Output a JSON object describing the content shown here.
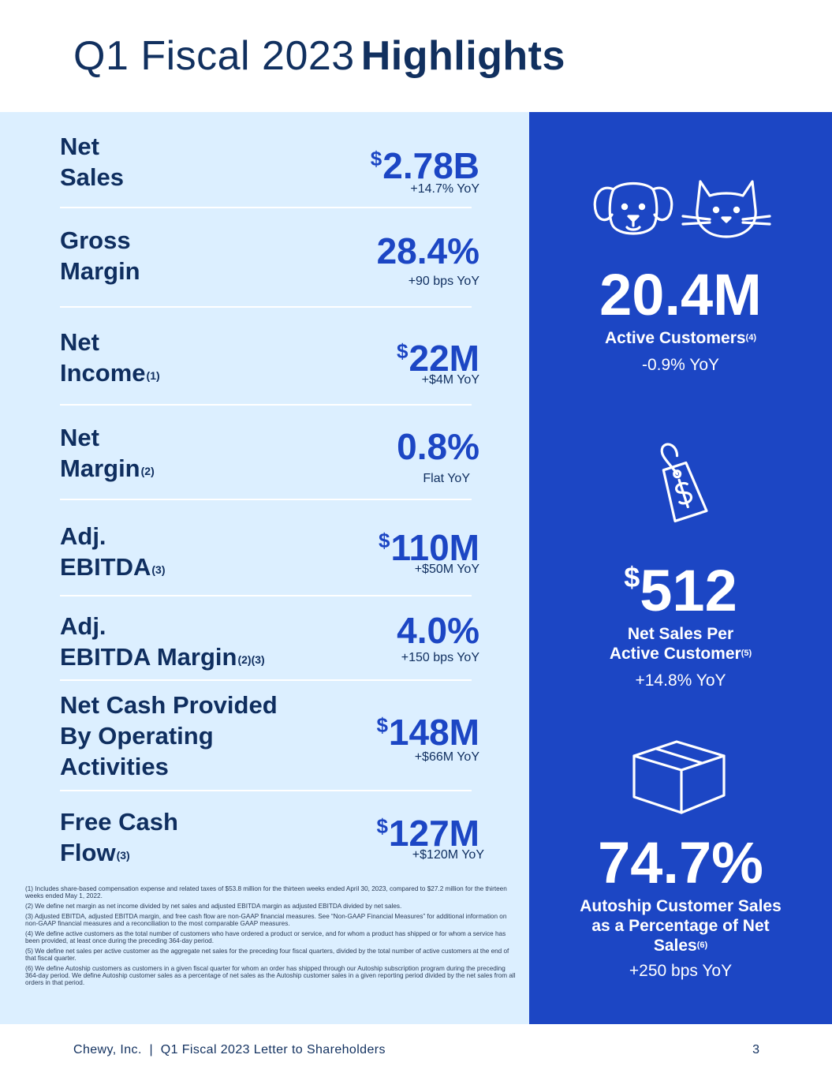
{
  "header": {
    "title_light": "Q1 Fiscal 2023",
    "title_bold": "Highlights"
  },
  "metrics": [
    {
      "label_lines": [
        "Net",
        "Sales"
      ],
      "sup": "",
      "currency": "$",
      "value": "2.78B",
      "change": "+14.7% YoY"
    },
    {
      "label_lines": [
        "Gross",
        "Margin"
      ],
      "sup": "",
      "currency": "",
      "value": "28.4%",
      "change": "+90 bps YoY"
    },
    {
      "label_lines": [
        "Net",
        "Income"
      ],
      "sup": "(1)",
      "currency": "$",
      "value": "22M",
      "change": "+$4M YoY"
    },
    {
      "label_lines": [
        "Net",
        "Margin"
      ],
      "sup": "(2)",
      "currency": "",
      "value": "0.8%",
      "change": "Flat YoY"
    },
    {
      "label_lines": [
        "Adj.",
        "EBITDA"
      ],
      "sup": "(3)",
      "currency": "$",
      "value": "110M",
      "change": "+$50M YoY"
    },
    {
      "label_lines": [
        "Adj.",
        "EBITDA Margin"
      ],
      "sup": "(2)(3)",
      "currency": "",
      "value": "4.0%",
      "change": "+150 bps YoY"
    },
    {
      "label_lines": [
        "Net Cash Provided",
        "By Operating",
        "Activities"
      ],
      "sup": "",
      "currency": "$",
      "value": "148M",
      "change": "+$66M YoY"
    },
    {
      "label_lines": [
        "Free Cash",
        "Flow"
      ],
      "sup": "(3)",
      "currency": "$",
      "value": "127M",
      "change": "+$120M YoY"
    }
  ],
  "footnotes": [
    "(1) Includes share-based compensation expense and related taxes of $53.8 million for the thirteen weeks ended April 30, 2023, compared to $27.2 million for the thirteen weeks ended May 1, 2022.",
    "(2) We define net margin as net income divided by net sales and adjusted EBITDA margin as adjusted EBITDA divided by net sales.",
    "(3) Adjusted EBITDA, adjusted EBITDA margin, and free cash flow are non-GAAP financial measures. See “Non-GAAP Financial Measures” for additional information on non-GAAP financial measures and a reconciliation to the most comparable GAAP measures.",
    "(4) We define active customers as the total number of customers who have ordered a product or service, and for whom a product has shipped or for whom a service has been provided, at least once during the preceding 364-day period.",
    "(5) We define net sales per active customer as the aggregate net sales for the preceding four fiscal quarters, divided by the total number of active customers at the end of that fiscal quarter.",
    "(6) We define Autoship customers as customers in a given fiscal quarter for whom an order has shipped through our Autoship subscription program during the preceding 364-day period. We define Autoship customer sales as a percentage of net sales as the Autoship customer sales in a given reporting period divided by the net sales from all orders in that period."
  ],
  "highlights": {
    "active_customers": {
      "icon": "dog-and-cat-icon",
      "value": "20.4M",
      "label": "Active Customers",
      "sup": "(4)",
      "change": "-0.9% YoY"
    },
    "net_sales_per_customer": {
      "icon": "price-tag-icon",
      "currency": "$",
      "value": "512",
      "label_line1": "Net Sales Per",
      "label_line2": "Active Customer",
      "sup": "(5)",
      "change": "+14.8% YoY"
    },
    "autoship": {
      "icon": "box-icon",
      "value": "74.7%",
      "label_line1": "Autoship Customer Sales",
      "label_line2": "as a Percentage of Net",
      "label_line3": "Sales",
      "sup": "(6)",
      "change": "+250 bps YoY"
    }
  },
  "footer": {
    "text": "Chewy, Inc.  |  Q1 Fiscal 2023 Letter to Shareholders",
    "page_number": "3"
  },
  "colors": {
    "navy": "#11305f",
    "accent_blue": "#1c46c4",
    "light_panel": "#dcefff"
  }
}
